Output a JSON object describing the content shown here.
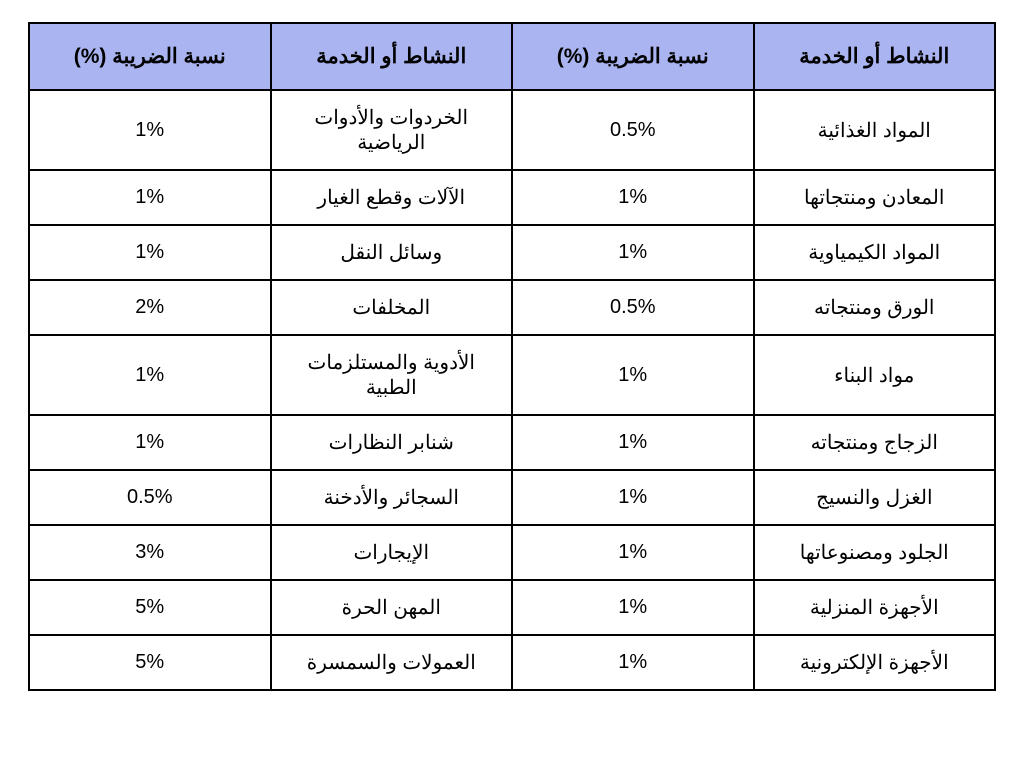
{
  "table": {
    "type": "table",
    "header_bg": "#aab4f0",
    "border_color": "#000000",
    "text_color": "#000000",
    "background_color": "#ffffff",
    "header_fontsize": 21,
    "cell_fontsize": 20,
    "columns": [
      "النشاط أو الخدمة",
      "نسبة الضريبة (%)",
      "النشاط أو الخدمة",
      "نسبة الضريبة (%)"
    ],
    "rows": [
      {
        "act1": "المواد الغذائية",
        "rate1": "0.5%",
        "act2": "الخردوات والأدوات الرياضية",
        "rate2": "1%"
      },
      {
        "act1": "المعادن ومنتجاتها",
        "rate1": "1%",
        "act2": "الآلات وقطع الغيار",
        "rate2": "1%"
      },
      {
        "act1": "المواد الكيمياوية",
        "rate1": "1%",
        "act2": "وسائل النقل",
        "rate2": "1%"
      },
      {
        "act1": "الورق ومنتجاته",
        "rate1": "0.5%",
        "act2": "المخلفات",
        "rate2": "2%"
      },
      {
        "act1": "مواد البناء",
        "rate1": "1%",
        "act2": "الأدوية والمستلزمات الطبية",
        "rate2": "1%"
      },
      {
        "act1": "الزجاج ومنتجاته",
        "rate1": "1%",
        "act2": "شنابر النظارات",
        "rate2": "1%"
      },
      {
        "act1": "الغزل والنسيج",
        "rate1": "1%",
        "act2": "السجائر والأدخنة",
        "rate2": "0.5%"
      },
      {
        "act1": "الجلود ومصنوعاتها",
        "rate1": "1%",
        "act2": "الإيجارات",
        "rate2": "3%"
      },
      {
        "act1": "الأجهزة المنزلية",
        "rate1": "1%",
        "act2": "المهن الحرة",
        "rate2": "5%"
      },
      {
        "act1": "الأجهزة الإلكترونية",
        "rate1": "1%",
        "act2": "العمولات والسمسرة",
        "rate2": "5%"
      }
    ]
  }
}
